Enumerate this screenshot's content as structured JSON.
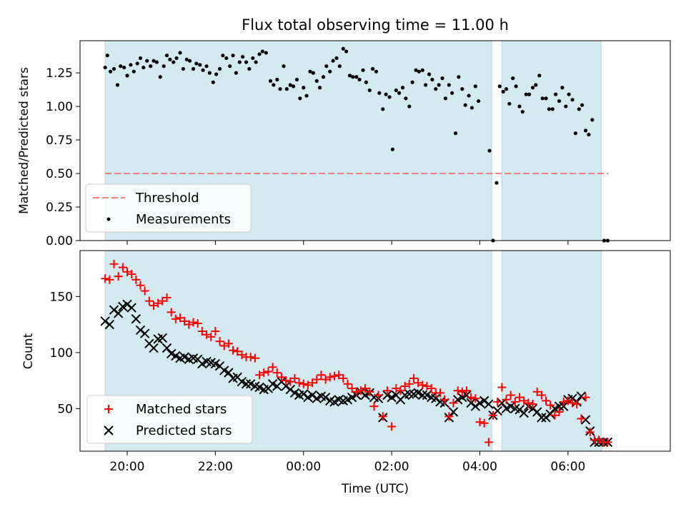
{
  "figure": {
    "title": "Flux total observing time = 11.00 h",
    "xlabel": "Time (UTC)",
    "xticks": [
      {
        "t": 20,
        "label": "20:00"
      },
      {
        "t": 22,
        "label": "22:00"
      },
      {
        "t": 24,
        "label": "00:00"
      },
      {
        "t": 26,
        "label": "02:00"
      },
      {
        "t": 28,
        "label": "04:00"
      },
      {
        "t": 30,
        "label": "06:00"
      }
    ]
  },
  "chart_data": [
    {
      "type": "scatter",
      "ylabel": "Matched/Predicted stars",
      "xlim": [
        18.93,
        32.32
      ],
      "ylim": [
        0.0,
        1.49
      ],
      "yticks": [
        {
          "v": 0.0,
          "label": "0.00"
        },
        {
          "v": 0.25,
          "label": "0.25"
        },
        {
          "v": 0.5,
          "label": "0.50"
        },
        {
          "v": 0.75,
          "label": "0.75"
        },
        {
          "v": 1.0,
          "label": "1.00"
        },
        {
          "v": 1.25,
          "label": "1.25"
        }
      ],
      "observing_windows": [
        [
          19.5,
          28.27
        ],
        [
          28.5,
          30.75
        ]
      ],
      "window_color": "#d4eaf1",
      "threshold": {
        "name": "Threshold",
        "value": 0.5,
        "x_range": [
          19.5,
          30.92
        ],
        "color": "#f08080"
      },
      "legend": {
        "placement": "lower left",
        "entries": [
          {
            "label": "Threshold",
            "marker": "dash",
            "color": "#f08080"
          },
          {
            "label": "Measurements",
            "marker": "dot",
            "color": "#000000"
          }
        ]
      },
      "series": [
        {
          "name": "Measurements",
          "color": "#000000",
          "points": [
            [
              19.5,
              1.29
            ],
            [
              19.55,
              1.38
            ],
            [
              19.62,
              1.26
            ],
            [
              19.7,
              1.28
            ],
            [
              19.78,
              1.16
            ],
            [
              19.85,
              1.3
            ],
            [
              19.93,
              1.29
            ],
            [
              20.0,
              1.23
            ],
            [
              20.08,
              1.31
            ],
            [
              20.15,
              1.26
            ],
            [
              20.23,
              1.32
            ],
            [
              20.3,
              1.36
            ],
            [
              20.37,
              1.29
            ],
            [
              20.45,
              1.34
            ],
            [
              20.53,
              1.3
            ],
            [
              20.6,
              1.34
            ],
            [
              20.67,
              1.33
            ],
            [
              20.75,
              1.22
            ],
            [
              20.83,
              1.3
            ],
            [
              20.9,
              1.38
            ],
            [
              20.97,
              1.35
            ],
            [
              21.05,
              1.33
            ],
            [
              21.12,
              1.36
            ],
            [
              21.2,
              1.4
            ],
            [
              21.27,
              1.28
            ],
            [
              21.35,
              1.35
            ],
            [
              21.42,
              1.34
            ],
            [
              21.5,
              1.28
            ],
            [
              21.57,
              1.32
            ],
            [
              21.65,
              1.31
            ],
            [
              21.72,
              1.27
            ],
            [
              21.8,
              1.3
            ],
            [
              21.87,
              1.25
            ],
            [
              21.95,
              1.18
            ],
            [
              22.02,
              1.24
            ],
            [
              22.1,
              1.28
            ],
            [
              22.17,
              1.38
            ],
            [
              22.25,
              1.36
            ],
            [
              22.33,
              1.3
            ],
            [
              22.4,
              1.38
            ],
            [
              22.47,
              1.25
            ],
            [
              22.55,
              1.33
            ],
            [
              22.62,
              1.37
            ],
            [
              22.7,
              1.33
            ],
            [
              22.77,
              1.28
            ],
            [
              22.85,
              1.36
            ],
            [
              22.92,
              1.33
            ],
            [
              23.0,
              1.39
            ],
            [
              23.07,
              1.41
            ],
            [
              23.15,
              1.4
            ],
            [
              23.25,
              1.19
            ],
            [
              23.32,
              1.16
            ],
            [
              23.4,
              1.2
            ],
            [
              23.47,
              1.13
            ],
            [
              23.55,
              1.3
            ],
            [
              23.62,
              1.13
            ],
            [
              23.7,
              1.16
            ],
            [
              23.77,
              1.15
            ],
            [
              23.85,
              1.2
            ],
            [
              23.92,
              1.06
            ],
            [
              24.0,
              1.14
            ],
            [
              24.07,
              1.08
            ],
            [
              24.15,
              1.26
            ],
            [
              24.22,
              1.25
            ],
            [
              24.3,
              1.19
            ],
            [
              24.37,
              1.14
            ],
            [
              24.45,
              1.22
            ],
            [
              24.52,
              1.3
            ],
            [
              24.6,
              1.26
            ],
            [
              24.67,
              1.34
            ],
            [
              24.75,
              1.36
            ],
            [
              24.82,
              1.3
            ],
            [
              24.9,
              1.43
            ],
            [
              24.97,
              1.41
            ],
            [
              25.05,
              1.23
            ],
            [
              25.12,
              1.22
            ],
            [
              25.2,
              1.22
            ],
            [
              25.27,
              1.2
            ],
            [
              25.35,
              1.27
            ],
            [
              25.42,
              1.18
            ],
            [
              25.5,
              1.12
            ],
            [
              25.57,
              1.28
            ],
            [
              25.65,
              1.26
            ],
            [
              25.72,
              1.1
            ],
            [
              25.8,
              0.98
            ],
            [
              25.87,
              1.09
            ],
            [
              25.95,
              1.07
            ],
            [
              26.02,
              0.68
            ],
            [
              26.1,
              1.12
            ],
            [
              26.17,
              1.1
            ],
            [
              26.25,
              1.14
            ],
            [
              26.32,
              1.06
            ],
            [
              26.4,
              1.0
            ],
            [
              26.47,
              1.18
            ],
            [
              26.55,
              1.27
            ],
            [
              26.62,
              1.26
            ],
            [
              26.7,
              1.27
            ],
            [
              26.77,
              1.16
            ],
            [
              26.85,
              1.24
            ],
            [
              26.92,
              1.2
            ],
            [
              27.0,
              1.13
            ],
            [
              27.07,
              1.16
            ],
            [
              27.15,
              1.21
            ],
            [
              27.22,
              1.06
            ],
            [
              27.3,
              1.16
            ],
            [
              27.37,
              1.1
            ],
            [
              27.45,
              0.8
            ],
            [
              27.52,
              1.22
            ],
            [
              27.6,
              1.13
            ],
            [
              27.67,
              1.01
            ],
            [
              27.75,
              1.08
            ],
            [
              27.82,
              0.99
            ],
            [
              27.9,
              1.15
            ],
            [
              27.97,
              1.04
            ],
            [
              28.22,
              0.67
            ],
            [
              28.3,
              0.0
            ],
            [
              28.38,
              0.43
            ],
            [
              28.45,
              1.15
            ],
            [
              28.53,
              1.11
            ],
            [
              28.6,
              1.13
            ],
            [
              28.67,
              1.02
            ],
            [
              28.75,
              1.21
            ],
            [
              28.82,
              1.15
            ],
            [
              28.9,
              1.0
            ],
            [
              28.97,
              0.96
            ],
            [
              29.05,
              1.09
            ],
            [
              29.12,
              1.09
            ],
            [
              29.2,
              1.14
            ],
            [
              29.27,
              1.16
            ],
            [
              29.35,
              1.23
            ],
            [
              29.42,
              1.06
            ],
            [
              29.5,
              1.06
            ],
            [
              29.57,
              0.98
            ],
            [
              29.65,
              0.98
            ],
            [
              29.72,
              1.09
            ],
            [
              29.8,
              1.04
            ],
            [
              29.87,
              1.14
            ],
            [
              29.95,
              1.0
            ],
            [
              30.02,
              1.09
            ],
            [
              30.1,
              1.05
            ],
            [
              30.17,
              0.8
            ],
            [
              30.25,
              0.98
            ],
            [
              30.32,
              1.01
            ],
            [
              30.4,
              0.82
            ],
            [
              30.47,
              0.79
            ],
            [
              30.55,
              0.9
            ],
            [
              30.82,
              0.0
            ],
            [
              30.9,
              0.0
            ]
          ]
        }
      ]
    },
    {
      "type": "scatter",
      "ylabel": "Count",
      "xlim": [
        18.93,
        32.32
      ],
      "ylim": [
        12,
        191
      ],
      "yticks": [
        {
          "v": 50,
          "label": "50"
        },
        {
          "v": 100,
          "label": "100"
        },
        {
          "v": 150,
          "label": "150"
        }
      ],
      "observing_windows": [
        [
          19.5,
          28.27
        ],
        [
          28.5,
          30.75
        ]
      ],
      "window_color": "#d4eaf1",
      "legend": {
        "placement": "lower left",
        "entries": [
          {
            "label": "Matched stars",
            "marker": "plus",
            "color": "#ff0000"
          },
          {
            "label": "Predicted stars",
            "marker": "x",
            "color": "#000000"
          }
        ]
      },
      "x": [
        19.5,
        19.6,
        19.7,
        19.8,
        19.9,
        20.0,
        20.1,
        20.2,
        20.3,
        20.4,
        20.5,
        20.6,
        20.7,
        20.8,
        20.9,
        21.0,
        21.1,
        21.2,
        21.3,
        21.4,
        21.5,
        21.6,
        21.7,
        21.8,
        21.9,
        22.0,
        22.1,
        22.2,
        22.3,
        22.4,
        22.5,
        22.6,
        22.7,
        22.8,
        22.9,
        23.0,
        23.1,
        23.2,
        23.3,
        23.4,
        23.5,
        23.6,
        23.7,
        23.8,
        23.9,
        24.0,
        24.1,
        24.2,
        24.3,
        24.4,
        24.5,
        24.6,
        24.7,
        24.8,
        24.9,
        25.0,
        25.1,
        25.2,
        25.3,
        25.4,
        25.5,
        25.6,
        25.7,
        25.8,
        25.9,
        26.0,
        26.1,
        26.2,
        26.3,
        26.4,
        26.5,
        26.6,
        26.7,
        26.8,
        26.9,
        27.0,
        27.1,
        27.2,
        27.3,
        27.4,
        27.5,
        27.6,
        27.7,
        27.8,
        27.9,
        28.0,
        28.1,
        28.2,
        28.3,
        28.4,
        28.5,
        28.6,
        28.7,
        28.8,
        28.9,
        29.0,
        29.1,
        29.2,
        29.3,
        29.4,
        29.5,
        29.6,
        29.7,
        29.8,
        29.9,
        30.0,
        30.1,
        30.2,
        30.3,
        30.4,
        30.5,
        30.6,
        30.7,
        30.8,
        30.9
      ],
      "series": [
        {
          "name": "Matched stars",
          "color": "#ff0000",
          "marker": "plus",
          "values": [
            166,
            165,
            179,
            168,
            176,
            172,
            170,
            165,
            160,
            155,
            146,
            142,
            144,
            146,
            149,
            136,
            130,
            131,
            128,
            125,
            127,
            126,
            119,
            116,
            114,
            119,
            110,
            106,
            108,
            102,
            101,
            98,
            96,
            96,
            95,
            80,
            82,
            83,
            87,
            82,
            78,
            75,
            74,
            77,
            73,
            72,
            71,
            73,
            76,
            80,
            76,
            78,
            79,
            80,
            77,
            72,
            68,
            65,
            66,
            68,
            65,
            52,
            62,
            43,
            66,
            34,
            68,
            66,
            70,
            72,
            77,
            73,
            71,
            70,
            68,
            64,
            64,
            58,
            43,
            55,
            66,
            65,
            66,
            60,
            59,
            38,
            37,
            20,
            44,
            56,
            69,
            58,
            62,
            56,
            60,
            57,
            55,
            54,
            65,
            62,
            57,
            53,
            44,
            47,
            56,
            57,
            55,
            54,
            41,
            60,
            29,
            22,
            22,
            20,
            20
          ]
        },
        {
          "name": "Predicted stars",
          "color": "#000000",
          "marker": "x",
          "values": [
            128,
            125,
            138,
            135,
            141,
            143,
            140,
            130,
            120,
            117,
            108,
            104,
            112,
            113,
            104,
            99,
            97,
            95,
            96,
            94,
            95,
            94,
            90,
            92,
            91,
            90,
            88,
            84,
            82,
            77,
            78,
            74,
            72,
            72,
            70,
            69,
            67,
            68,
            72,
            70,
            74,
            70,
            67,
            64,
            62,
            63,
            60,
            62,
            59,
            61,
            60,
            57,
            56,
            58,
            57,
            58,
            60,
            62,
            65,
            62,
            64,
            60,
            59,
            42,
            62,
            60,
            62,
            58,
            62,
            63,
            63,
            64,
            62,
            62,
            60,
            59,
            56,
            55,
            42,
            47,
            58,
            60,
            62,
            55,
            52,
            55,
            57,
            54,
            44,
            48,
            55,
            50,
            52,
            50,
            49,
            46,
            52,
            50,
            47,
            42,
            42,
            45,
            50,
            52,
            52,
            58,
            59,
            56,
            61,
            40,
            30,
            20,
            20,
            20,
            20
          ]
        }
      ]
    }
  ]
}
